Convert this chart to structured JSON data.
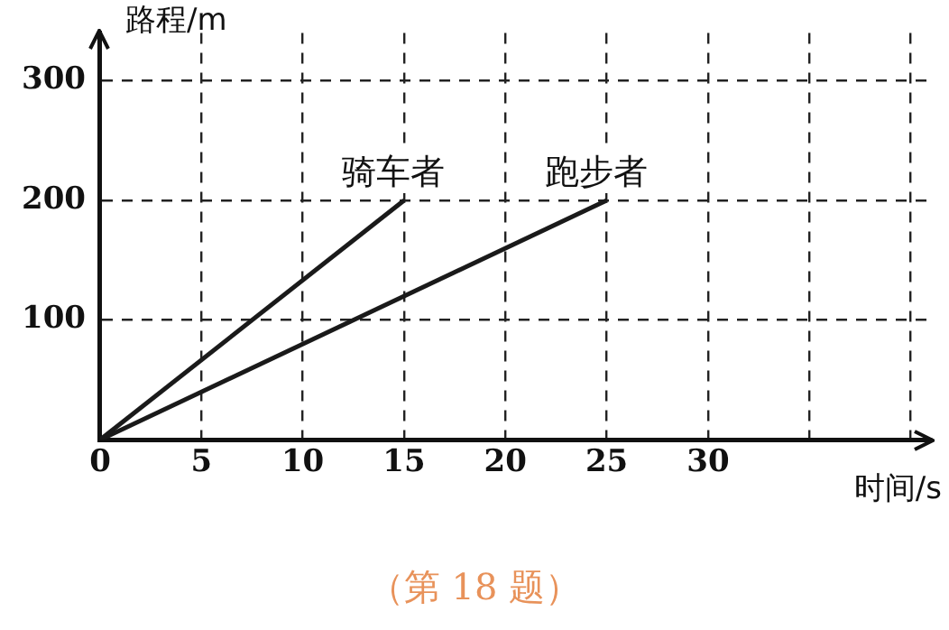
{
  "chart_data": {
    "type": "line",
    "xlabel": "时间/s",
    "ylabel": "路程/m",
    "series": [
      {
        "name": "骑车者",
        "color": "#1a1a1a",
        "x": [
          0,
          15
        ],
        "values": [
          0,
          200
        ]
      },
      {
        "name": "跑步者",
        "color": "#1a1a1a",
        "x": [
          0,
          25
        ],
        "values": [
          0,
          200
        ]
      }
    ],
    "xlim": [
      0,
      41
    ],
    "xticks": [
      0,
      5,
      10,
      15,
      20,
      25,
      30,
      {
        "value": 35,
        "label": null
      },
      {
        "value": 40,
        "label": null
      }
    ],
    "ylim": [
      0,
      340
    ],
    "yticks": [
      {
        "value": 0,
        "label": null
      },
      100,
      200,
      300
    ],
    "grid": true,
    "legend": false,
    "marker": "none",
    "line_style": "solid",
    "annotations": [
      "（第 18 题）"
    ]
  }
}
